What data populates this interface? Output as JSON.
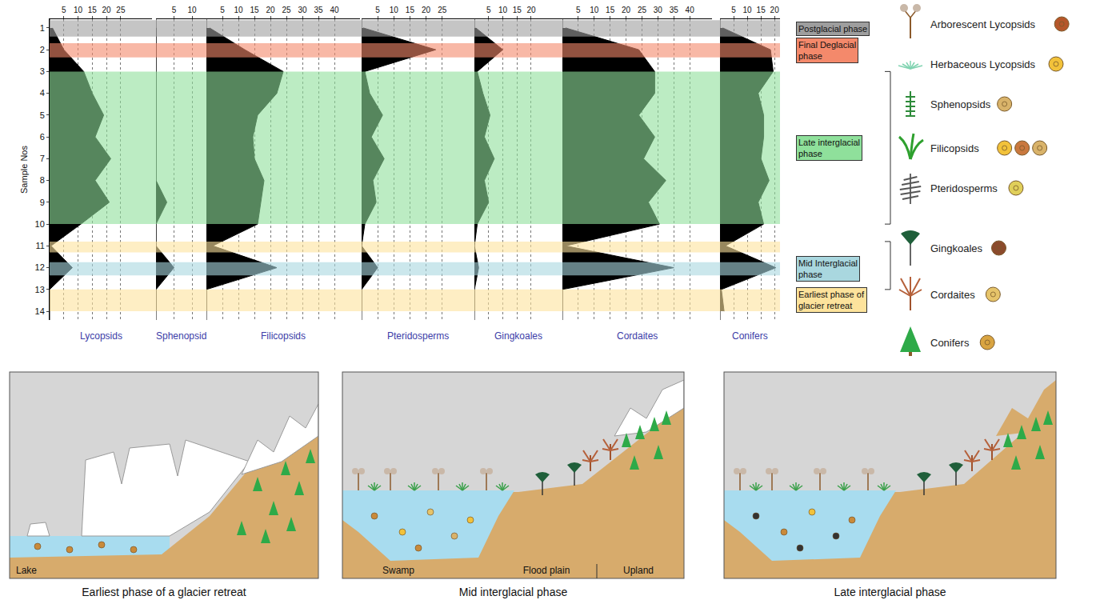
{
  "chart_data": {
    "type": "area",
    "color": "#000000",
    "y_label": "Sample Nos",
    "samples": [
      1,
      2,
      3,
      4,
      5,
      6,
      7,
      8,
      9,
      10,
      11,
      12,
      13,
      14
    ],
    "ylim": [
      0.6,
      14.4
    ],
    "yticks": [
      1,
      2,
      3,
      4,
      5,
      6,
      7,
      8,
      9,
      10,
      11,
      12,
      13,
      14
    ],
    "grid": true,
    "panels": [
      {
        "name": "Lycopsids",
        "xlim": [
          0,
          36
        ],
        "xticks": [
          5,
          10,
          15,
          20,
          25
        ],
        "values": [
          1,
          5,
          12,
          15,
          19,
          16,
          21.5,
          16,
          21,
          11,
          0.5,
          8,
          0,
          0
        ]
      },
      {
        "name": "Sphenopsid",
        "xlim": [
          0,
          14
        ],
        "xticks": [
          5,
          10
        ],
        "values": [
          0,
          0,
          0,
          0,
          0,
          0,
          0,
          0,
          3,
          0,
          0,
          5,
          0,
          0
        ]
      },
      {
        "name": "Filicopsids",
        "xlim": [
          0,
          48
        ],
        "xticks": [
          5,
          10,
          15,
          20,
          25,
          30,
          35,
          40
        ],
        "values": [
          1,
          12,
          24,
          22,
          16,
          14.5,
          15,
          18,
          17,
          16,
          2,
          22,
          0,
          0
        ]
      },
      {
        "name": "Pteridosperms",
        "xlim": [
          0,
          35
        ],
        "xticks": [
          5,
          10,
          15,
          20,
          25
        ],
        "values": [
          0.5,
          23,
          1,
          2.5,
          6.5,
          3,
          7,
          3.5,
          4.5,
          1,
          0,
          5,
          0,
          0
        ]
      },
      {
        "name": "Gingkoales",
        "xlim": [
          0,
          31
        ],
        "xticks": [
          5,
          10,
          15,
          20
        ],
        "values": [
          0.5,
          10,
          1,
          3,
          5.5,
          3.5,
          7,
          3.5,
          5,
          1,
          0,
          1.5,
          0,
          0
        ]
      },
      {
        "name": "Cordaites",
        "xlim": [
          0,
          47
        ],
        "xticks": [
          5,
          10,
          15,
          20,
          25,
          30,
          35,
          40
        ],
        "values": [
          1,
          24,
          29,
          29,
          24,
          29,
          25.5,
          32.5,
          27,
          30.5,
          1,
          35,
          0,
          0
        ]
      },
      {
        "name": "Conifers",
        "xlim": [
          0,
          22
        ],
        "xticks": [
          5,
          10,
          15,
          20
        ],
        "values": [
          1,
          18.5,
          19.5,
          14,
          16,
          16,
          15,
          18,
          14,
          16,
          2,
          20.5,
          0.5,
          1.5
        ]
      }
    ],
    "phases": [
      {
        "label": "Postglacial phase",
        "color": "#9e9e9e",
        "bands": [
          [
            0.65,
            1.4
          ]
        ]
      },
      {
        "label": "Final Deglacial phase",
        "color": "#f4896b",
        "bands": [
          [
            1.7,
            2.35
          ]
        ]
      },
      {
        "label": "Late interglacial phase",
        "color": "#8fe09b",
        "bands": [
          [
            3,
            10
          ]
        ]
      },
      {
        "label": "Mid Interglacial phase",
        "color": "#a9d7df",
        "bands": [
          [
            11.75,
            12.35
          ]
        ]
      },
      {
        "label": "Earliest phase of glacier retreat",
        "color": "#fde39c",
        "bands": [
          [
            10.8,
            11.3
          ],
          [
            13,
            14
          ]
        ]
      }
    ]
  },
  "legend_items": [
    "Arborescent Lycopsids",
    "Herbaceous Lycopsids",
    "Sphenopsids",
    "Filicopsids",
    "Pteridosperms",
    "Gingkoales",
    "Cordaites",
    "Conifers"
  ],
  "scenes": [
    {
      "title": "Earliest phase of a glacier retreat",
      "labels": [
        "Lake"
      ]
    },
    {
      "title": "Mid interglacial phase",
      "labels": [
        "Swamp",
        "Flood plain",
        "Upland"
      ]
    },
    {
      "title": "Late interglacial phase"
    }
  ]
}
